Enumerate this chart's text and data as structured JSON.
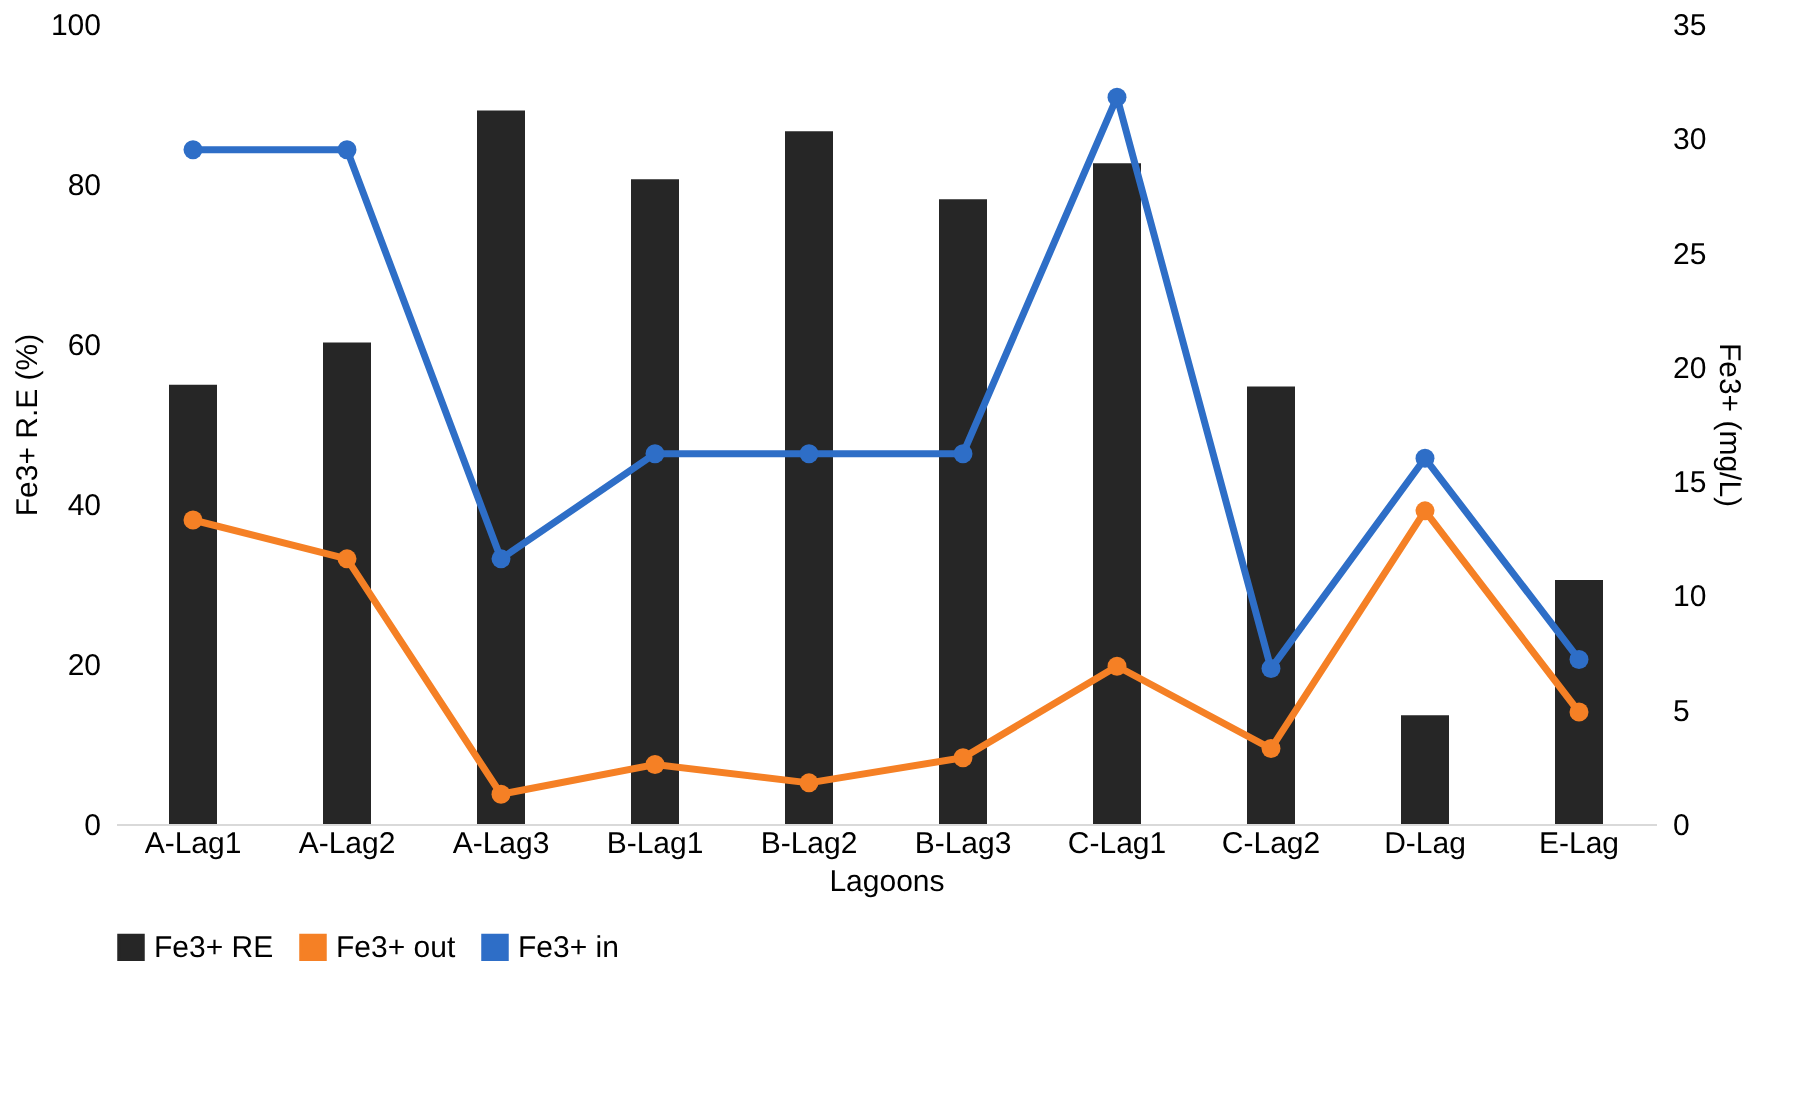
{
  "chart_data": {
    "type": "bar",
    "xlabel": "Lagoons",
    "ylabel": "Fe3+ R.E (%)",
    "y2label": "Fe3+ (mg/L)",
    "categories": [
      "A-Lag1",
      "A-Lag2",
      "A-Lag3",
      "B-Lag1",
      "B-Lag2",
      "B-Lag3",
      "C-Lag1",
      "C-Lag2",
      "D-Lag",
      "E-Lag"
    ],
    "series": [
      {
        "name": "Fe3+ RE",
        "color": "#262626",
        "values": [
          54.9,
          60.2,
          89.2,
          80.6,
          86.6,
          78.1,
          82.6,
          54.7,
          13.6,
          30.5
        ]
      },
      {
        "name": "Fe3+ out",
        "type": "line",
        "axis": "y2",
        "color": "#f58025",
        "values": [
          13.3,
          11.6,
          1.3,
          2.6,
          1.8,
          2.9,
          6.9,
          3.3,
          13.7,
          4.9
        ]
      },
      {
        "name": "Fe3+ in",
        "type": "line",
        "axis": "y2",
        "color": "#2e6ec7",
        "values": [
          29.5,
          29.5,
          11.6,
          16.2,
          16.2,
          16.2,
          31.8,
          6.8,
          16.0,
          7.2
        ]
      }
    ],
    "ylim": [
      0,
      100
    ],
    "yticks": [
      0,
      20,
      40,
      60,
      80,
      100
    ],
    "y2lim": [
      0,
      35
    ],
    "y2ticks": [
      0,
      5,
      10,
      15,
      20,
      25,
      30,
      35
    ],
    "grid": false,
    "legend": "bottom",
    "marker": "circle",
    "line_style": "solid"
  }
}
